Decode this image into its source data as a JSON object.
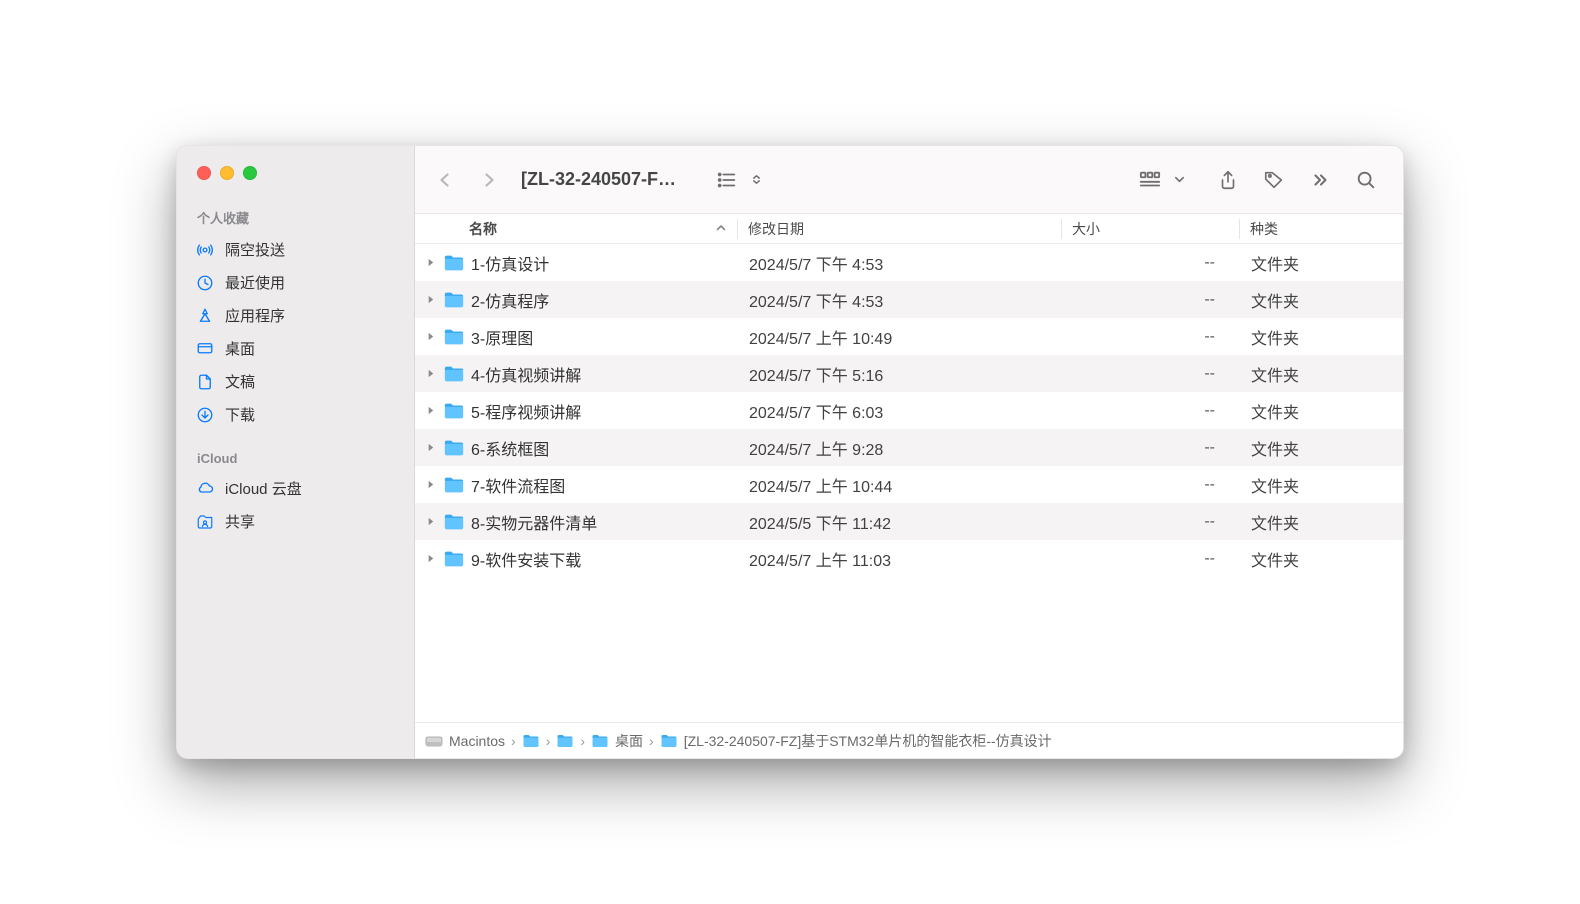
{
  "window_title": "[ZL-32-240507-F…",
  "sidebar": {
    "section_favorites": "个人收藏",
    "items": [
      {
        "icon": "airdrop",
        "label": "隔空投送"
      },
      {
        "icon": "clock",
        "label": "最近使用"
      },
      {
        "icon": "apps",
        "label": "应用程序"
      },
      {
        "icon": "desktop",
        "label": "桌面"
      },
      {
        "icon": "doc",
        "label": "文稿"
      },
      {
        "icon": "download",
        "label": "下载"
      }
    ],
    "section_icloud": "iCloud",
    "icloud_items": [
      {
        "icon": "cloud",
        "label": "iCloud 云盘"
      },
      {
        "icon": "shared",
        "label": "共享"
      }
    ]
  },
  "columns": {
    "name": "名称",
    "date": "修改日期",
    "size": "大小",
    "kind": "种类"
  },
  "rows": [
    {
      "name": "1-仿真设计",
      "date": "2024/5/7 下午 4:53",
      "size": "--",
      "kind": "文件夹"
    },
    {
      "name": "2-仿真程序",
      "date": "2024/5/7 下午 4:53",
      "size": "--",
      "kind": "文件夹"
    },
    {
      "name": "3-原理图",
      "date": "2024/5/7 上午 10:49",
      "size": "--",
      "kind": "文件夹"
    },
    {
      "name": "4-仿真视频讲解",
      "date": "2024/5/7 下午 5:16",
      "size": "--",
      "kind": "文件夹"
    },
    {
      "name": "5-程序视频讲解",
      "date": "2024/5/7 下午 6:03",
      "size": "--",
      "kind": "文件夹"
    },
    {
      "name": "6-系统框图",
      "date": "2024/5/7 上午 9:28",
      "size": "--",
      "kind": "文件夹"
    },
    {
      "name": "7-软件流程图",
      "date": "2024/5/7 上午 10:44",
      "size": "--",
      "kind": "文件夹"
    },
    {
      "name": "8-实物元器件清单",
      "date": "2024/5/5 下午 11:42",
      "size": "--",
      "kind": "文件夹"
    },
    {
      "name": "9-软件安装下载",
      "date": "2024/5/7 上午 11:03",
      "size": "--",
      "kind": "文件夹"
    }
  ],
  "path": {
    "disk": "Macintos",
    "desktop": "桌面",
    "folder": "[ZL-32-240507-FZ]基于STM32单片机的智能衣柜--仿真设计"
  },
  "colors": {
    "accent": "#0a7bff",
    "folder_fill": "#62c4ff",
    "folder_top": "#3aa9f0",
    "sidebar_bg": "#eeebec",
    "toolbar_bg": "#fbf9fa",
    "row_alt": "#f5f3f4"
  }
}
